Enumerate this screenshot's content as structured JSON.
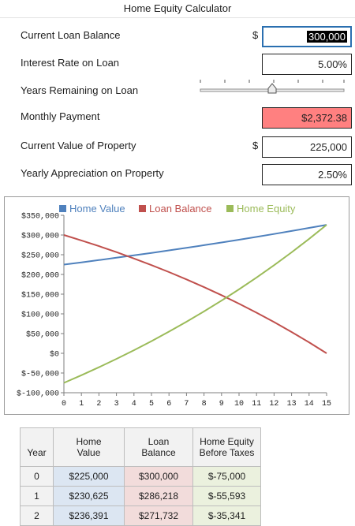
{
  "title": "Home Equity Calculator",
  "inputs": {
    "loan_balance": {
      "label": "Current Loan Balance",
      "currency": "$",
      "value": "300,000"
    },
    "interest_rate": {
      "label": "Interest Rate on Loan",
      "value": "5.00%"
    },
    "years_remaining": {
      "label": "Years Remaining on Loan",
      "value_years": 15,
      "min_years": 0,
      "max_years": 30
    },
    "monthly_payment": {
      "label": "Monthly Payment",
      "value": "$2,372.38"
    },
    "property_value": {
      "label": "Current Value of Property",
      "currency": "$",
      "value": "225,000"
    },
    "appreciation": {
      "label": "Yearly Appreciation on Property",
      "value": "2.50%"
    }
  },
  "chart_data": {
    "type": "line",
    "title": "",
    "xlabel": "",
    "ylabel": "",
    "x": [
      0,
      1,
      2,
      3,
      4,
      5,
      6,
      7,
      8,
      9,
      10,
      11,
      12,
      13,
      14,
      15
    ],
    "xlim": [
      0,
      15
    ],
    "ylim": [
      -100000,
      350000
    ],
    "y_ticks": [
      -100000,
      -50000,
      0,
      50000,
      100000,
      150000,
      200000,
      250000,
      300000,
      350000
    ],
    "y_tick_labels": [
      "$-100,000",
      "$-50,000",
      "$0",
      "$50,000",
      "$100,000",
      "$150,000",
      "$200,000",
      "$250,000",
      "$300,000",
      "$350,000"
    ],
    "legend_position": "top",
    "grid": false,
    "series": [
      {
        "name": "Home Value",
        "color": "#4f81bd",
        "values": [
          225000,
          230625,
          236391,
          242300,
          248358,
          254567,
          260931,
          267454,
          274141,
          280994,
          288019,
          295219,
          302600,
          310165,
          317919,
          325867
        ]
      },
      {
        "name": "Loan Balance",
        "color": "#c0504d",
        "values": [
          300000,
          286218,
          271732,
          256505,
          240499,
          223674,
          205988,
          187398,
          167856,
          147315,
          125723,
          103026,
          79168,
          54090,
          27729,
          0
        ]
      },
      {
        "name": "Home Equity",
        "color": "#9bbb59",
        "values": [
          -75000,
          -55593,
          -35341,
          -14205,
          7859,
          30893,
          54943,
          80056,
          106285,
          133679,
          162296,
          192193,
          223432,
          256075,
          290190,
          325867
        ]
      }
    ]
  },
  "table": {
    "headers_top": [
      "",
      "Home",
      "Loan",
      "Home Equity"
    ],
    "headers_bottom": [
      "Year",
      "Value",
      "Balance",
      "Before Taxes"
    ],
    "rows": [
      {
        "year": "0",
        "home_value": "$225,000",
        "loan_balance": "$300,000",
        "equity": "$-75,000"
      },
      {
        "year": "1",
        "home_value": "$230,625",
        "loan_balance": "$286,218",
        "equity": "$-55,593"
      },
      {
        "year": "2",
        "home_value": "$236,391",
        "loan_balance": "$271,732",
        "equity": "$-35,341"
      }
    ]
  },
  "colors": {
    "home_value_fill": "#dce6f2",
    "loan_balance_fill": "#f2dcdb",
    "equity_fill": "#ebf1de",
    "payment_fill": "#ff8080",
    "selection": "#2a6fb0"
  }
}
